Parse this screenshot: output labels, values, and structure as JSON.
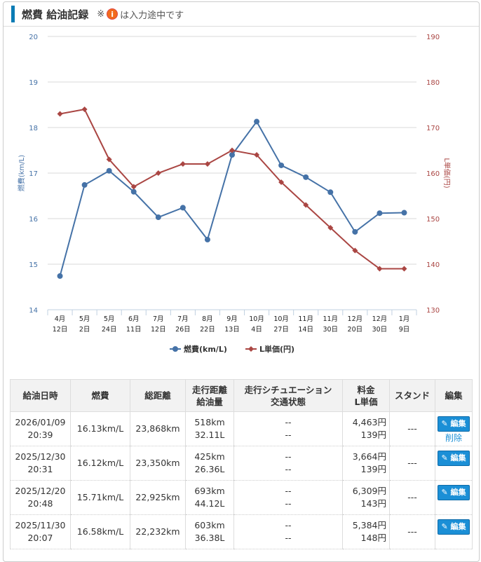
{
  "header": {
    "title": "燃費 給油記録",
    "note_prefix": "※",
    "note_icon": "info-icon",
    "note_icon_glyph": "i",
    "note_suffix": "は入力途中です"
  },
  "chart_data": {
    "type": "line",
    "categories": [
      "4月\n12日",
      "5月\n2日",
      "5月\n24日",
      "6月\n11日",
      "7月\n12日",
      "7月\n26日",
      "8月\n22日",
      "9月\n13日",
      "10月\n4日",
      "10月\n27日",
      "11月\n14日",
      "11月\n30日",
      "12月\n20日",
      "12月\n30日",
      "1月\n9日"
    ],
    "series": [
      {
        "name": "燃費(km/L)",
        "axis": "left",
        "color": "#4572a7",
        "values": [
          14.74,
          16.74,
          17.05,
          16.59,
          16.03,
          16.24,
          15.54,
          17.4,
          18.13,
          17.17,
          16.91,
          16.58,
          15.71,
          16.12,
          16.13
        ]
      },
      {
        "name": "L単価(円)",
        "axis": "right",
        "color": "#aa4643",
        "values": [
          173,
          174,
          163,
          157,
          160,
          162,
          162,
          165,
          164,
          158,
          153,
          148,
          143,
          139,
          139
        ]
      }
    ],
    "left_axis": {
      "label": "燃費(km/L)",
      "range": [
        14,
        20
      ],
      "ticks": [
        14,
        15,
        16,
        17,
        18,
        19,
        20
      ]
    },
    "right_axis": {
      "label": "L単価(円)",
      "range": [
        130,
        190
      ],
      "ticks": [
        130,
        140,
        150,
        160,
        170,
        180,
        190
      ]
    },
    "grid": true,
    "legend": "bottom"
  },
  "table": {
    "headers": [
      [
        "給油日時"
      ],
      [
        "燃費"
      ],
      [
        "総距離"
      ],
      [
        "走行距離",
        "給油量"
      ],
      [
        "走行シチュエーション",
        "交通状態"
      ],
      [
        "料金",
        "L単価"
      ],
      [
        "スタンド"
      ],
      [
        "編集"
      ]
    ],
    "edit_label": "編集",
    "delete_label": "削除",
    "rows": [
      {
        "date": "2026/01/09",
        "time": "20:39",
        "fuel": "16.13km/L",
        "total": "23,868km",
        "dist": "518km",
        "amount": "32.11L",
        "sit": "--",
        "traffic": "--",
        "price": "4,463円",
        "unit": "139円",
        "stand": "---",
        "deletable": true
      },
      {
        "date": "2025/12/30",
        "time": "20:31",
        "fuel": "16.12km/L",
        "total": "23,350km",
        "dist": "425km",
        "amount": "26.36L",
        "sit": "--",
        "traffic": "--",
        "price": "3,664円",
        "unit": "139円",
        "stand": "---"
      },
      {
        "date": "2025/12/20",
        "time": "20:48",
        "fuel": "15.71km/L",
        "total": "22,925km",
        "dist": "693km",
        "amount": "44.12L",
        "sit": "--",
        "traffic": "--",
        "price": "6,309円",
        "unit": "143円",
        "stand": "---"
      },
      {
        "date": "2025/11/30",
        "time": "20:07",
        "fuel": "16.58km/L",
        "total": "22,232km",
        "dist": "603km",
        "amount": "36.38L",
        "sit": "--",
        "traffic": "--",
        "price": "5,384円",
        "unit": "148円",
        "stand": "---"
      }
    ]
  }
}
